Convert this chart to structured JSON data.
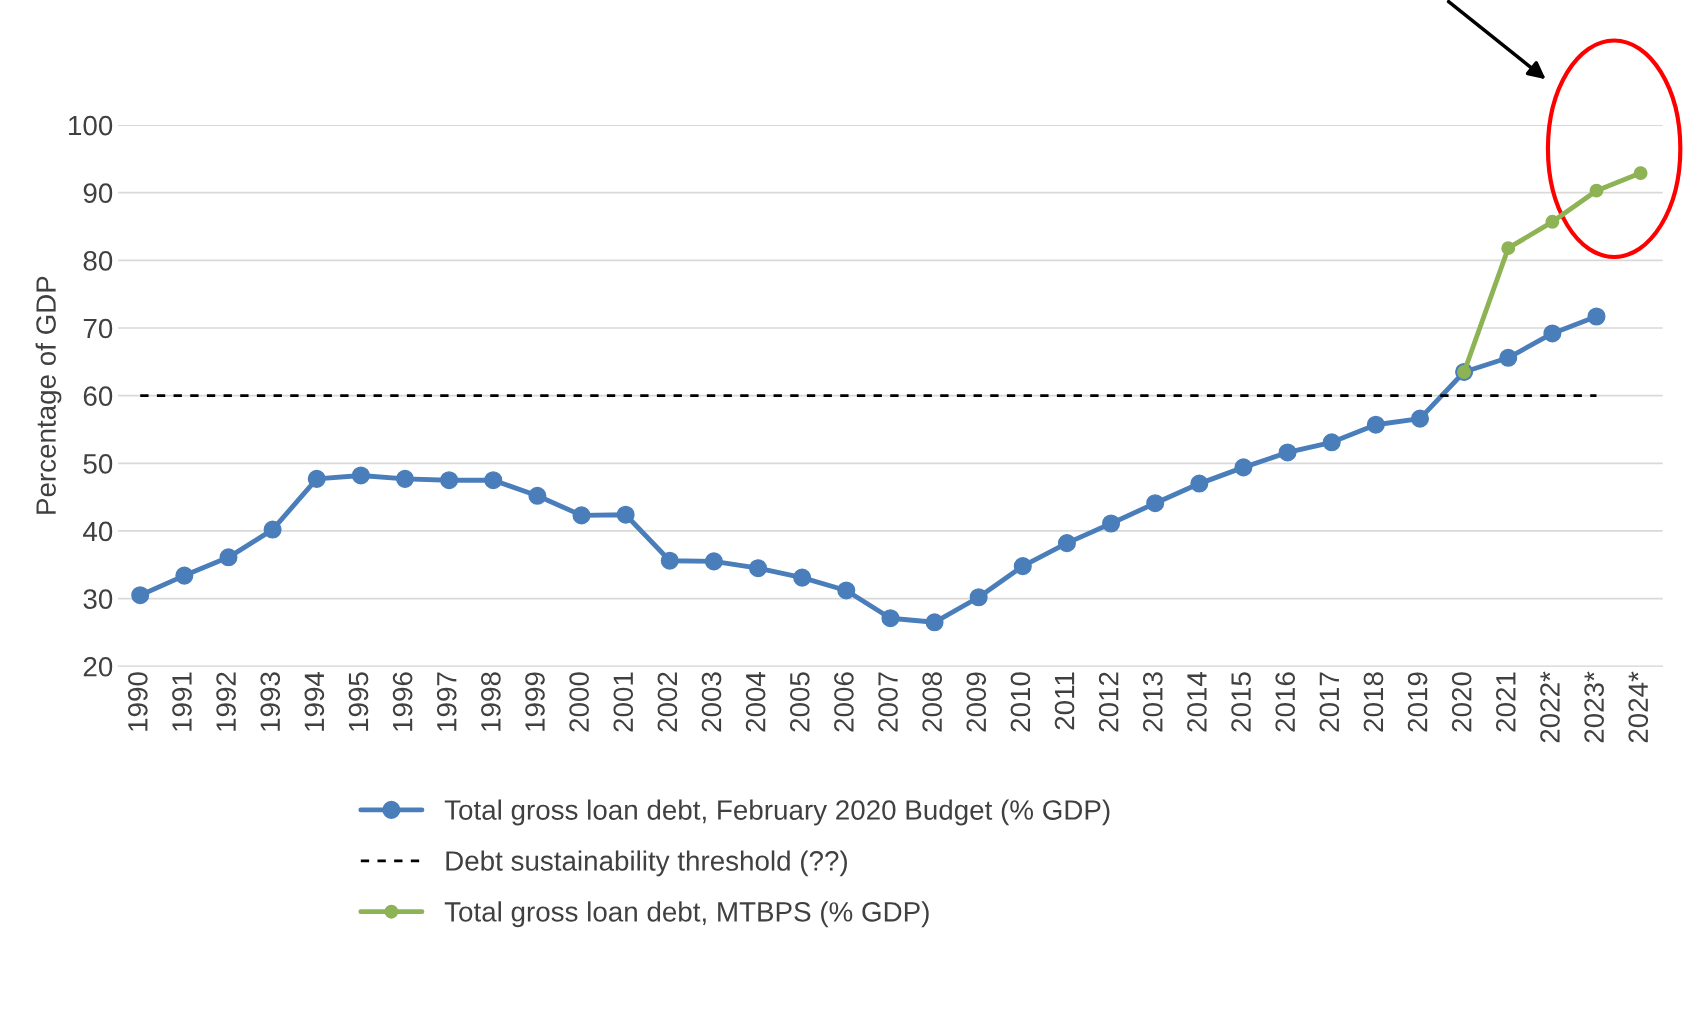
{
  "chart_data": {
    "type": "line",
    "ylabel": "Percentage of GDP",
    "categories": [
      "1990",
      "1991",
      "1992",
      "1993",
      "1994",
      "1995",
      "1996",
      "1997",
      "1998",
      "1999",
      "2000",
      "2001",
      "2002",
      "2003",
      "2004",
      "2005",
      "2006",
      "2007",
      "2008",
      "2009",
      "2010",
      "2011",
      "2012",
      "2013",
      "2014",
      "2015",
      "2016",
      "2017",
      "2018",
      "2019",
      "2020",
      "2021",
      "2022*",
      "2023*",
      "2024*"
    ],
    "series": [
      {
        "name": "Total gross loan debt, February 2020 Budget (% GDP)",
        "color": "#4a7ebb",
        "marker": "circle",
        "line_style": "solid",
        "values": [
          30.5,
          33.4,
          36.1,
          40.2,
          47.7,
          48.2,
          47.7,
          47.5,
          47.5,
          45.2,
          42.3,
          42.4,
          35.6,
          35.5,
          34.5,
          33.1,
          31.2,
          27.1,
          26.5,
          30.2,
          34.8,
          38.2,
          41.1,
          44.1,
          47.0,
          49.4,
          51.6,
          53.1,
          55.7,
          56.6,
          63.5,
          65.6,
          69.2,
          71.7,
          null
        ]
      },
      {
        "name": "Debt sustainability threshold (??)",
        "color": "#000000",
        "marker": "none",
        "line_style": "dashed",
        "values": [
          60,
          60,
          60,
          60,
          60,
          60,
          60,
          60,
          60,
          60,
          60,
          60,
          60,
          60,
          60,
          60,
          60,
          60,
          60,
          60,
          60,
          60,
          60,
          60,
          60,
          60,
          60,
          60,
          60,
          60,
          60,
          60,
          60,
          60,
          null
        ]
      },
      {
        "name": "Total gross loan debt, MTBPS (% GDP)",
        "color": "#8db355",
        "marker": "circle",
        "line_style": "solid",
        "values": [
          null,
          null,
          null,
          null,
          null,
          null,
          null,
          null,
          null,
          null,
          null,
          null,
          null,
          null,
          null,
          null,
          null,
          null,
          null,
          null,
          null,
          null,
          null,
          null,
          null,
          null,
          null,
          null,
          null,
          null,
          63.5,
          81.8,
          85.7,
          90.3,
          92.9
        ]
      }
    ],
    "ylim": [
      20,
      100
    ],
    "yticks": [
      20,
      30,
      40,
      50,
      60,
      70,
      80,
      90,
      100
    ],
    "grid": "y",
    "legend": "bottom"
  }
}
